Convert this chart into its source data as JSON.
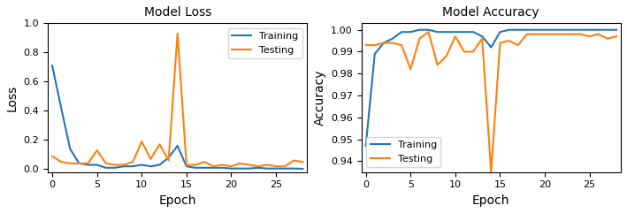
{
  "loss_title": "Model Loss",
  "loss_xlabel": "Epoch",
  "loss_ylabel": "Loss",
  "acc_title": "Model Accuracy",
  "acc_xlabel": "Epoch",
  "acc_ylabel": "Accuracy",
  "training_loss": [
    0.71,
    0.42,
    0.14,
    0.04,
    0.03,
    0.03,
    0.01,
    0.01,
    0.02,
    0.02,
    0.03,
    0.02,
    0.03,
    0.08,
    0.16,
    0.02,
    0.01,
    0.01,
    0.01,
    0.01,
    0.005,
    0.005,
    0.005,
    0.01,
    0.005,
    0.005,
    0.005,
    0.005,
    0.003
  ],
  "testing_loss": [
    0.09,
    0.05,
    0.04,
    0.04,
    0.04,
    0.13,
    0.04,
    0.03,
    0.03,
    0.05,
    0.19,
    0.07,
    0.17,
    0.06,
    0.93,
    0.03,
    0.03,
    0.05,
    0.02,
    0.03,
    0.02,
    0.04,
    0.03,
    0.02,
    0.03,
    0.02,
    0.02,
    0.06,
    0.05
  ],
  "training_acc": [
    0.947,
    0.989,
    0.994,
    0.996,
    0.999,
    0.999,
    1.0,
    1.0,
    0.999,
    0.999,
    0.999,
    0.999,
    0.999,
    0.997,
    0.992,
    0.999,
    1.0,
    1.0,
    1.0,
    1.0,
    1.0,
    1.0,
    1.0,
    1.0,
    1.0,
    1.0,
    1.0,
    1.0,
    1.0
  ],
  "testing_acc": [
    0.993,
    0.993,
    0.994,
    0.994,
    0.993,
    0.982,
    0.996,
    0.999,
    0.984,
    0.988,
    0.997,
    0.99,
    0.99,
    0.996,
    0.935,
    0.994,
    0.995,
    0.993,
    0.998,
    0.998,
    0.998,
    0.998,
    0.998,
    0.998,
    0.998,
    0.997,
    0.998,
    0.996,
    0.997
  ],
  "color_training": "#1f77b4",
  "color_testing": "#ff7f0e",
  "legend_loss_loc": "upper right",
  "legend_acc_loc": "lower left",
  "loss_ylim": [
    -0.02,
    1.0
  ],
  "acc_ylim": [
    0.935,
    1.003
  ],
  "acc_yticks": [
    0.94,
    0.95,
    0.96,
    0.97,
    0.98,
    0.99,
    1.0
  ],
  "figsize": [
    7.09,
    2.41
  ],
  "dpi": 100,
  "fontsize": 10
}
